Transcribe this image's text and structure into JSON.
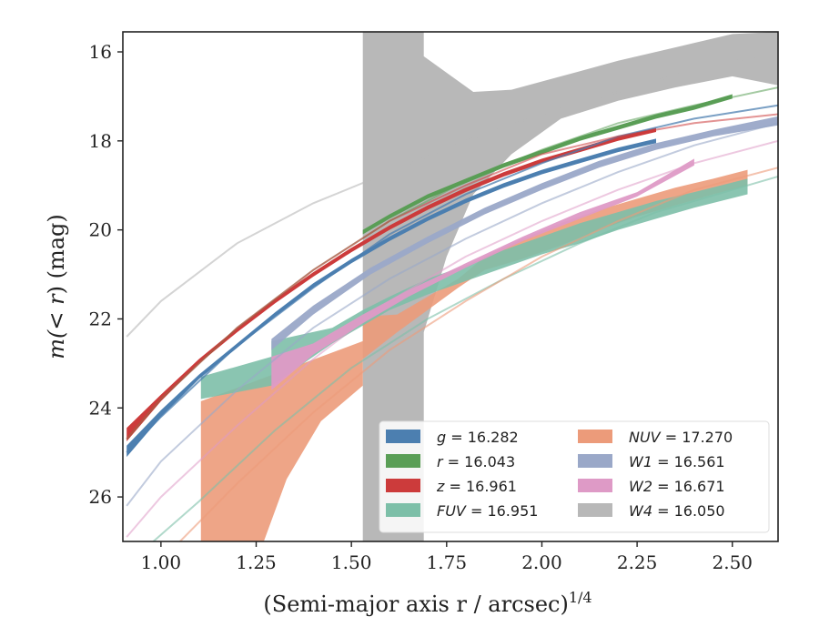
{
  "chart_data": {
    "type": "line",
    "xlabel": "(Semi-major axis r / arcsec)",
    "xlabel_exponent": "1/4",
    "ylabel_parts": [
      "m(",
      "< r",
      ") (mag)"
    ],
    "xlim": [
      0.9,
      2.62
    ],
    "ylim": [
      27.0,
      15.55
    ],
    "y_inverted": true,
    "xticks": [
      1.0,
      1.25,
      1.5,
      1.75,
      2.0,
      2.25,
      2.5
    ],
    "xtick_labels": [
      "1.00",
      "1.25",
      "1.50",
      "1.75",
      "2.00",
      "2.25",
      "2.50"
    ],
    "yticks": [
      16,
      18,
      20,
      22,
      24,
      26
    ],
    "ytick_labels": [
      "16",
      "18",
      "20",
      "22",
      "24",
      "26"
    ],
    "grid": false,
    "legend_position": "lower-right",
    "legend": [
      {
        "band": "g",
        "text": "= 16.282",
        "color": "#4c7fb0"
      },
      {
        "band": "r",
        "text": "= 16.043",
        "color": "#5a9e56"
      },
      {
        "band": "z",
        "text": "= 16.961",
        "color": "#cc3b3b"
      },
      {
        "band": "FUV",
        "text": "= 16.951",
        "color": "#7dbfa8"
      },
      {
        "band": "NUV",
        "text": "= 17.270",
        "color": "#ec9b7a"
      },
      {
        "band": "W1",
        "text": "= 16.561",
        "color": "#9aa8c8"
      },
      {
        "band": "W2",
        "text": "= 16.671",
        "color": "#de9ac6"
      },
      {
        "band": "W4",
        "text": "= 16.050",
        "color": "#b8b8b8"
      }
    ],
    "model_curves": [
      {
        "band": "W4",
        "color": "#b8b8b8",
        "opacity": 0.6,
        "x": [
          0.91,
          1.0,
          1.2,
          1.4,
          1.6,
          1.8,
          2.0,
          2.2,
          2.4,
          2.62
        ],
        "y": [
          22.4,
          21.6,
          20.3,
          19.4,
          18.7,
          18.0,
          17.4,
          16.9,
          16.4,
          16.0
        ]
      },
      {
        "band": "g",
        "color": "#4c7fb0",
        "opacity": 0.75,
        "x": [
          0.91,
          1.0,
          1.2,
          1.4,
          1.6,
          1.8,
          2.0,
          2.2,
          2.4,
          2.62
        ],
        "y": [
          25.0,
          24.2,
          22.6,
          21.3,
          20.1,
          19.2,
          18.5,
          17.9,
          17.5,
          17.2
        ]
      },
      {
        "band": "r",
        "color": "#5a9e56",
        "opacity": 0.55,
        "x": [
          0.91,
          1.0,
          1.2,
          1.4,
          1.6,
          1.8,
          2.0,
          2.2,
          2.4,
          2.62
        ],
        "y": [
          24.7,
          23.8,
          22.2,
          20.9,
          19.8,
          18.9,
          18.2,
          17.6,
          17.2,
          16.8
        ]
      },
      {
        "band": "z",
        "color": "#cc3b3b",
        "opacity": 0.55,
        "x": [
          0.91,
          1.0,
          1.2,
          1.4,
          1.6,
          1.8,
          2.0,
          2.2,
          2.4,
          2.62
        ],
        "y": [
          24.7,
          23.8,
          22.2,
          20.9,
          19.8,
          19.0,
          18.3,
          17.9,
          17.6,
          17.4
        ]
      },
      {
        "band": "W1",
        "color": "#9aa8c8",
        "opacity": 0.6,
        "x": [
          0.91,
          1.0,
          1.2,
          1.4,
          1.6,
          1.8,
          2.0,
          2.2,
          2.4,
          2.62
        ],
        "y": [
          26.2,
          25.2,
          23.6,
          22.2,
          21.1,
          20.2,
          19.4,
          18.7,
          18.1,
          17.6
        ]
      },
      {
        "band": "W2",
        "color": "#de9ac6",
        "opacity": 0.55,
        "x": [
          0.91,
          1.0,
          1.2,
          1.4,
          1.6,
          1.8,
          2.0,
          2.2,
          2.4,
          2.62
        ],
        "y": [
          26.9,
          26.0,
          24.4,
          22.9,
          21.6,
          20.6,
          19.8,
          19.1,
          18.5,
          18.0
        ]
      },
      {
        "band": "FUV",
        "color": "#7dbfa8",
        "opacity": 0.6,
        "x": [
          0.98,
          1.1,
          1.3,
          1.5,
          1.7,
          1.9,
          2.1,
          2.3,
          2.5,
          2.62
        ],
        "y": [
          27.0,
          26.1,
          24.5,
          23.1,
          22.0,
          21.1,
          20.3,
          19.6,
          19.1,
          18.8
        ]
      },
      {
        "band": "NUV",
        "color": "#ec9b7a",
        "opacity": 0.6,
        "x": [
          1.05,
          1.2,
          1.4,
          1.6,
          1.8,
          2.0,
          2.2,
          2.4,
          2.62
        ],
        "y": [
          27.0,
          25.7,
          24.1,
          22.7,
          21.6,
          20.6,
          19.8,
          19.1,
          18.6
        ]
      }
    ],
    "bands": [
      {
        "band": "W4",
        "color": "#b8b8b8",
        "opacity": 1.0,
        "x": [
          1.53,
          1.53,
          1.69,
          1.69,
          1.82,
          1.92,
          2.05,
          2.2,
          2.35,
          2.5,
          2.62,
          2.62,
          2.5,
          2.35,
          2.2,
          2.05,
          1.92,
          1.82,
          1.75,
          1.69,
          1.69,
          1.53
        ],
        "y_upper": null,
        "poly_y": [
          27.0,
          15.55,
          15.55,
          16.1,
          16.9,
          16.85,
          16.55,
          16.2,
          15.9,
          15.6,
          15.55,
          16.75,
          16.55,
          16.8,
          17.1,
          17.5,
          18.3,
          19.2,
          20.6,
          22.3,
          27.0,
          27.0
        ]
      },
      {
        "band": "NUV",
        "color": "#ec9b7a",
        "opacity": 0.9,
        "x": [
          1.105,
          1.105,
          1.53,
          1.53,
          1.62,
          1.7,
          1.78,
          1.85,
          1.95,
          2.05,
          2.15,
          2.25,
          2.35,
          2.45,
          2.54,
          2.54,
          2.45,
          2.35,
          2.25,
          2.15,
          2.05,
          1.95,
          1.85,
          1.78,
          1.7,
          1.62,
          1.53,
          1.53,
          1.42,
          1.33,
          1.27,
          1.23,
          1.105
        ],
        "poly_y": [
          27.0,
          23.85,
          22.5,
          21.95,
          21.9,
          21.5,
          21.1,
          20.6,
          20.2,
          19.85,
          19.55,
          19.3,
          19.05,
          18.85,
          18.65,
          19.0,
          19.2,
          19.45,
          19.7,
          20.0,
          20.35,
          20.65,
          20.9,
          21.3,
          21.8,
          22.3,
          22.9,
          23.5,
          24.3,
          25.6,
          27.0,
          27.0,
          27.0
        ]
      },
      {
        "band": "FUV",
        "color": "#7dbfa8",
        "opacity": 0.9,
        "x": [
          1.105,
          1.105,
          1.29,
          1.29,
          1.45,
          1.53,
          1.6,
          1.7,
          1.8,
          1.9,
          2.0,
          2.1,
          2.2,
          2.3,
          2.4,
          2.54,
          2.54,
          2.4,
          2.3,
          2.2,
          2.1,
          2.0,
          1.9,
          1.8,
          1.7,
          1.6,
          1.53,
          1.45,
          1.29,
          1.105
        ],
        "poly_y": [
          23.8,
          23.3,
          22.85,
          22.5,
          22.2,
          21.8,
          21.5,
          21.1,
          20.8,
          20.45,
          20.15,
          19.85,
          19.6,
          19.35,
          19.15,
          18.85,
          19.2,
          19.5,
          19.75,
          20.0,
          20.3,
          20.55,
          20.85,
          21.15,
          21.45,
          21.8,
          22.15,
          22.55,
          23.5,
          23.8
        ]
      },
      {
        "band": "W2",
        "color": "#de9ac6",
        "opacity": 0.95,
        "x": [
          1.29,
          1.29,
          1.4,
          1.53,
          1.65,
          1.8,
          1.95,
          2.1,
          2.25,
          2.4,
          2.4,
          2.25,
          2.1,
          1.95,
          1.8,
          1.65,
          1.53,
          1.4,
          1.29
        ],
        "poly_y": [
          23.6,
          22.85,
          22.55,
          21.9,
          21.35,
          20.75,
          20.15,
          19.6,
          19.15,
          18.4,
          18.55,
          19.25,
          19.75,
          20.25,
          20.85,
          21.5,
          22.1,
          22.8,
          23.6
        ]
      },
      {
        "band": "W1",
        "color": "#9aa8c8",
        "opacity": 0.95,
        "x": [
          1.29,
          1.4,
          1.55,
          1.7,
          1.85,
          2.0,
          2.15,
          2.3,
          2.45,
          2.62,
          2.62,
          2.45,
          2.3,
          2.15,
          2.0,
          1.85,
          1.7,
          1.55,
          1.4,
          1.29
        ],
        "poly_y": [
          22.45,
          21.7,
          20.85,
          20.15,
          19.5,
          18.95,
          18.45,
          18.05,
          17.75,
          17.45,
          17.65,
          17.9,
          18.2,
          18.6,
          19.1,
          19.65,
          20.3,
          21.0,
          21.9,
          22.7
        ]
      },
      {
        "band": "z",
        "color": "#cc3b3b",
        "opacity": 1.0,
        "x": [
          0.91,
          1.0,
          1.1,
          1.2,
          1.3,
          1.4,
          1.5,
          1.6,
          1.7,
          1.8,
          1.9,
          2.0,
          2.1,
          2.2,
          2.3,
          2.3,
          2.2,
          2.1,
          2.0,
          1.9,
          1.8,
          1.7,
          1.6,
          1.5,
          1.4,
          1.3,
          1.2,
          1.1,
          1.0,
          0.91
        ],
        "poly_y": [
          24.45,
          23.7,
          22.9,
          22.2,
          21.55,
          20.95,
          20.4,
          19.9,
          19.45,
          19.05,
          18.7,
          18.4,
          18.15,
          17.9,
          17.7,
          17.8,
          18.0,
          18.25,
          18.5,
          18.8,
          19.15,
          19.55,
          20.0,
          20.5,
          21.05,
          21.65,
          22.3,
          23.0,
          23.85,
          24.75
        ]
      },
      {
        "band": "r",
        "color": "#5a9e56",
        "opacity": 1.0,
        "x": [
          1.53,
          1.6,
          1.7,
          1.8,
          1.9,
          2.0,
          2.1,
          2.2,
          2.3,
          2.4,
          2.5,
          2.5,
          2.4,
          2.3,
          2.2,
          2.1,
          2.0,
          1.9,
          1.8,
          1.7,
          1.6,
          1.53
        ],
        "poly_y": [
          20.0,
          19.65,
          19.2,
          18.85,
          18.5,
          18.2,
          17.9,
          17.65,
          17.4,
          17.2,
          16.95,
          17.05,
          17.3,
          17.5,
          17.75,
          18.0,
          18.3,
          18.6,
          18.95,
          19.3,
          19.75,
          20.1
        ]
      },
      {
        "band": "g",
        "color": "#4c7fb0",
        "opacity": 1.0,
        "x": [
          0.91,
          1.0,
          1.1,
          1.2,
          1.3,
          1.4,
          1.5,
          1.6,
          1.7,
          1.8,
          1.9,
          2.0,
          2.1,
          2.2,
          2.3,
          2.3,
          2.2,
          2.1,
          2.0,
          1.9,
          1.8,
          1.7,
          1.6,
          1.5,
          1.4,
          1.3,
          1.2,
          1.1,
          1.0,
          0.91
        ],
        "poly_y": [
          24.85,
          24.05,
          23.25,
          22.55,
          21.85,
          21.2,
          20.65,
          20.15,
          19.7,
          19.3,
          18.95,
          18.65,
          18.4,
          18.15,
          17.95,
          18.05,
          18.25,
          18.5,
          18.75,
          19.05,
          19.4,
          19.8,
          20.25,
          20.75,
          21.3,
          21.95,
          22.65,
          23.35,
          24.2,
          25.1
        ]
      }
    ]
  }
}
